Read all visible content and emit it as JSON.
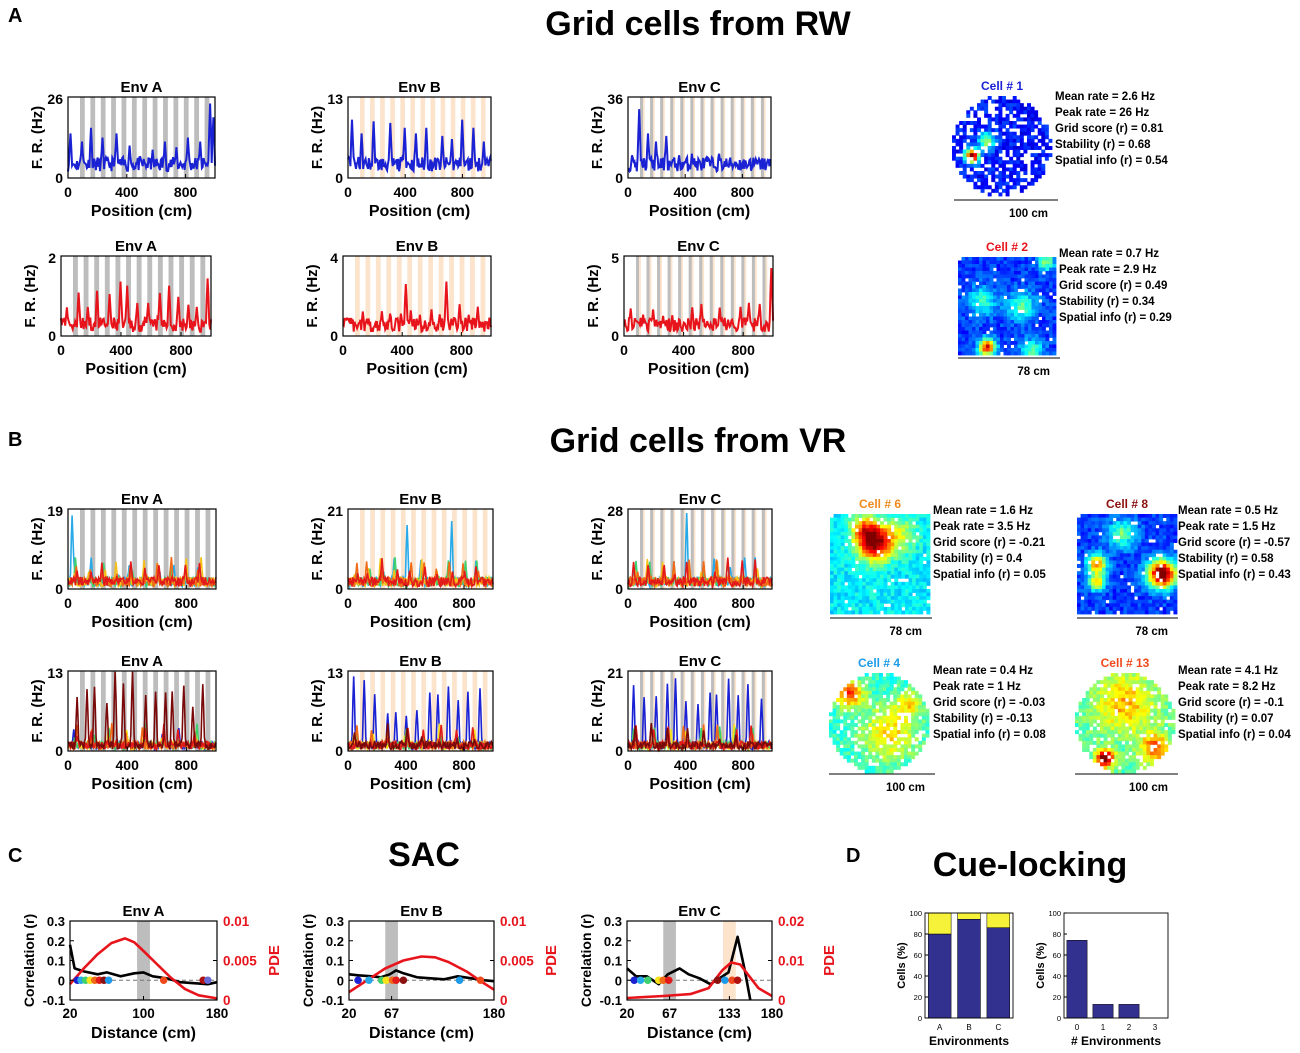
{
  "figure": {
    "panel_letters": {
      "a": "A",
      "b": "B",
      "c": "C",
      "d": "D"
    },
    "titles": {
      "rw": "Grid cells from RW",
      "vr": "Grid cells from VR",
      "sac": "SAC",
      "cue": "Cue-locking"
    },
    "axis_text": {
      "fr_ylabel": "F. R. (Hz)",
      "pos_xlabel": "Position (cm)",
      "corr_ylabel": "Correlation (r)",
      "pde_ylabel": "PDE",
      "dist_xlabel": "Distance (cm)",
      "cells_ylabel": "Cells (%)",
      "env_xlabel": "Environments",
      "nenv_xlabel": "# Environments"
    },
    "colors": {
      "blue": "#1a22d4",
      "red": "#e8141c",
      "gray_band": "#bdbdbd",
      "peach_band": "#fbe3cc",
      "navy_bar": "#33318f",
      "yellow_bar": "#f6f23a"
    }
  },
  "cells": [
    {
      "id": "c1",
      "title": "Cell # 1",
      "color": "#1a22d4",
      "scale": "100 cm",
      "shape": "circle",
      "stats": [
        "Mean rate = 2.6 Hz",
        "Peak rate = 26 Hz",
        "Grid score (r) = 0.81",
        "Stability (r) = 0.68",
        "Spatial info (r) = 0.54"
      ]
    },
    {
      "id": "c2",
      "title": "Cell # 2",
      "color": "#e8141c",
      "scale": "78 cm",
      "shape": "square",
      "stats": [
        "Mean rate = 0.7 Hz",
        "Peak rate = 2.9 Hz",
        "Grid score (r) = 0.49",
        "Stability (r) = 0.34",
        "Spatial info (r) = 0.29"
      ]
    },
    {
      "id": "c6",
      "title": "Cell # 6",
      "color": "#f08a1c",
      "scale": "78 cm",
      "shape": "square",
      "stats": [
        "Mean rate = 1.6 Hz",
        "Peak rate = 3.5 Hz",
        "Grid score (r) = -0.21",
        "Stability (r) = 0.4",
        "Spatial info (r) = 0.05"
      ]
    },
    {
      "id": "c8",
      "title": "Cell # 8",
      "color": "#8b1010",
      "scale": "78 cm",
      "shape": "square",
      "stats": [
        "Mean rate = 0.5 Hz",
        "Peak rate = 1.5 Hz",
        "Grid score (r) = -0.57",
        "Stability (r) = 0.58",
        "Spatial info (r) = 0.43"
      ]
    },
    {
      "id": "c4",
      "title": "Cell # 4",
      "color": "#1e9be8",
      "scale": "100 cm",
      "shape": "circle",
      "stats": [
        "Mean rate = 0.4 Hz",
        "Peak rate = 1 Hz",
        "Grid score (r) = -0.03",
        "Stability (r) = -0.13",
        "Spatial info (r) = 0.08"
      ]
    },
    {
      "id": "c13",
      "title": "Cell # 13",
      "color": "#f04a1c",
      "scale": "100 cm",
      "shape": "circle",
      "stats": [
        "Mean rate = 4.1 Hz",
        "Peak rate = 8.2 Hz",
        "Grid score (r) = -0.1",
        "Stability (r) = 0.07",
        "Spatial info (r) = 0.04"
      ]
    }
  ],
  "chart_data": [
    {
      "type": "line",
      "id": "rw_blue_A",
      "title": "Env A",
      "env": "A",
      "ymax": 26,
      "xticks": [
        0,
        400,
        800
      ],
      "xlim": [
        0,
        1000
      ],
      "color": "blue",
      "xlabel": "Position (cm)",
      "ylabel": "F. R. (Hz)"
    },
    {
      "type": "line",
      "id": "rw_blue_B",
      "title": "Env B",
      "env": "B",
      "ymax": 13,
      "xticks": [
        0,
        400,
        800
      ],
      "xlim": [
        0,
        1000
      ],
      "color": "blue",
      "xlabel": "Position (cm)",
      "ylabel": "F. R. (Hz)"
    },
    {
      "type": "line",
      "id": "rw_blue_C",
      "title": "Env C",
      "env": "C",
      "ymax": 36,
      "xticks": [
        0,
        400,
        800
      ],
      "xlim": [
        0,
        1000
      ],
      "color": "blue",
      "xlabel": "Position (cm)",
      "ylabel": "F. R. (Hz)"
    },
    {
      "type": "line",
      "id": "rw_red_A",
      "title": "Env A",
      "env": "A",
      "ymax": 2,
      "xticks": [
        0,
        400,
        800
      ],
      "xlim": [
        0,
        1000
      ],
      "color": "red",
      "xlabel": "Position (cm)",
      "ylabel": "F. R. (Hz)"
    },
    {
      "type": "line",
      "id": "rw_red_B",
      "title": "Env B",
      "env": "B",
      "ymax": 4,
      "xticks": [
        0,
        400,
        800
      ],
      "xlim": [
        0,
        1000
      ],
      "color": "red",
      "xlabel": "Position (cm)",
      "ylabel": "F. R. (Hz)"
    },
    {
      "type": "line",
      "id": "rw_red_C",
      "title": "Env C",
      "env": "C",
      "ymax": 5,
      "xticks": [
        0,
        400,
        800
      ],
      "xlim": [
        0,
        1000
      ],
      "color": "red",
      "xlabel": "Position (cm)",
      "ylabel": "F. R. (Hz)"
    },
    {
      "type": "line",
      "id": "vr1_A",
      "title": "Env A",
      "env": "A",
      "ymax": 19,
      "xticks": [
        0,
        400,
        800
      ],
      "xlim": [
        0,
        1000
      ],
      "color": "multi1",
      "xlabel": "Position (cm)",
      "ylabel": "F. R. (Hz)"
    },
    {
      "type": "line",
      "id": "vr1_B",
      "title": "Env B",
      "env": "B",
      "ymax": 21,
      "xticks": [
        0,
        400,
        800
      ],
      "xlim": [
        0,
        1000
      ],
      "color": "multi1",
      "xlabel": "Position (cm)",
      "ylabel": "F. R. (Hz)"
    },
    {
      "type": "line",
      "id": "vr1_C",
      "title": "Env C",
      "env": "C",
      "ymax": 28,
      "xticks": [
        0,
        400,
        800
      ],
      "xlim": [
        0,
        1000
      ],
      "color": "multi1",
      "xlabel": "Position (cm)",
      "ylabel": "F. R. (Hz)"
    },
    {
      "type": "line",
      "id": "vr2_A",
      "title": "Env A",
      "env": "A",
      "ymax": 13,
      "xticks": [
        0,
        400,
        800
      ],
      "xlim": [
        0,
        1000
      ],
      "color": "multi2",
      "xlabel": "Position (cm)",
      "ylabel": "F. R. (Hz)"
    },
    {
      "type": "line",
      "id": "vr2_B",
      "title": "Env B",
      "env": "B",
      "ymax": 13,
      "xticks": [
        0,
        400,
        800
      ],
      "xlim": [
        0,
        1000
      ],
      "color": "multi2",
      "xlabel": "Position (cm)",
      "ylabel": "F. R. (Hz)"
    },
    {
      "type": "line",
      "id": "vr2_C",
      "title": "Env C",
      "env": "C",
      "ymax": 21,
      "xticks": [
        0,
        400,
        800
      ],
      "xlim": [
        0,
        1000
      ],
      "color": "multi2",
      "xlabel": "Position (cm)",
      "ylabel": "F. R. (Hz)"
    },
    {
      "type": "line",
      "id": "sac_A",
      "title": "Env A",
      "xlim": [
        20,
        180
      ],
      "xticks": [
        20,
        100,
        180
      ],
      "ylim": [
        -0.1,
        0.3
      ],
      "yticks": [
        0,
        0.1,
        0.2,
        0.3
      ],
      "y2max": 0.01,
      "y2ticks": [
        "0",
        "0.005",
        "0.01"
      ],
      "xlabel": "Distance (cm)",
      "ylabel": "Correlation (r)",
      "y2label": "PDE",
      "band_gray": [
        93,
        107
      ],
      "band_peach": null,
      "black": [
        [
          20,
          0.18
        ],
        [
          25,
          0.06
        ],
        [
          35,
          0.045
        ],
        [
          50,
          0.03
        ],
        [
          60,
          0.04
        ],
        [
          75,
          0.02
        ],
        [
          90,
          0.035
        ],
        [
          100,
          0.04
        ],
        [
          110,
          0.02
        ],
        [
          125,
          0.01
        ],
        [
          140,
          -0.01
        ],
        [
          155,
          -0.015
        ],
        [
          170,
          -0.02
        ],
        [
          180,
          -0.01
        ]
      ],
      "red": [
        [
          20,
          0.002
        ],
        [
          35,
          0.004
        ],
        [
          50,
          0.0058
        ],
        [
          65,
          0.0072
        ],
        [
          80,
          0.0078
        ],
        [
          90,
          0.0073
        ],
        [
          100,
          0.0062
        ],
        [
          115,
          0.0045
        ],
        [
          130,
          0.0028
        ],
        [
          145,
          0.0014
        ],
        [
          160,
          0.0006
        ],
        [
          180,
          0.0002
        ]
      ],
      "dots": [
        28,
        32,
        37,
        42,
        47,
        52,
        57,
        62,
        122,
        165,
        170
      ]
    },
    {
      "type": "line",
      "id": "sac_B",
      "title": "Env B",
      "xlim": [
        20,
        180
      ],
      "xticks": [
        20,
        67,
        180
      ],
      "ylim": [
        -0.1,
        0.3
      ],
      "yticks": [
        0,
        0.1,
        0.2,
        0.3
      ],
      "y2max": 0.01,
      "y2ticks": [
        "0",
        "0.005",
        "0.01"
      ],
      "xlabel": "Distance (cm)",
      "ylabel": "Correlation (r)",
      "y2label": "PDE",
      "band_gray": [
        60,
        74
      ],
      "band_peach": null,
      "black": [
        [
          20,
          0.03
        ],
        [
          30,
          0.025
        ],
        [
          45,
          0.02
        ],
        [
          55,
          0.015
        ],
        [
          65,
          0.03
        ],
        [
          72,
          0.05
        ],
        [
          80,
          0.035
        ],
        [
          95,
          0.015
        ],
        [
          110,
          0.01
        ],
        [
          125,
          0.005
        ],
        [
          140,
          0.02
        ],
        [
          155,
          0.01
        ],
        [
          170,
          0.0
        ],
        [
          180,
          -0.005
        ]
      ],
      "red": [
        [
          20,
          0.001
        ],
        [
          40,
          0.0025
        ],
        [
          60,
          0.004
        ],
        [
          80,
          0.005
        ],
        [
          100,
          0.0055
        ],
        [
          115,
          0.0054
        ],
        [
          130,
          0.0048
        ],
        [
          150,
          0.0036
        ],
        [
          165,
          0.0024
        ],
        [
          180,
          0.0013
        ]
      ],
      "dots": [
        30,
        42,
        56,
        61,
        68,
        72,
        80,
        142,
        165
      ]
    },
    {
      "type": "line",
      "id": "sac_C",
      "title": "Env C",
      "xlim": [
        20,
        180
      ],
      "xticks": [
        20,
        67,
        133,
        180
      ],
      "ylim": [
        -0.1,
        0.3
      ],
      "yticks": [
        0,
        0.1,
        0.2,
        0.3
      ],
      "y2max": 0.02,
      "y2ticks": [
        "0",
        "0.01",
        "0.02"
      ],
      "xlabel": "Distance (cm)",
      "ylabel": "Correlation (r)",
      "y2label": "PDE",
      "band_gray": [
        60,
        74
      ],
      "band_peach": [
        126,
        140
      ],
      "black": [
        [
          20,
          0.06
        ],
        [
          30,
          0.02
        ],
        [
          42,
          0.02
        ],
        [
          55,
          -0.02
        ],
        [
          65,
          0.03
        ],
        [
          78,
          0.06
        ],
        [
          88,
          0.03
        ],
        [
          100,
          0.01
        ],
        [
          112,
          -0.02
        ],
        [
          122,
          0.01
        ],
        [
          132,
          0.04
        ],
        [
          142,
          0.22
        ],
        [
          150,
          0.05
        ],
        [
          156,
          -0.1
        ]
      ],
      "red": [
        [
          20,
          0.0005
        ],
        [
          60,
          0.001
        ],
        [
          90,
          0.0015
        ],
        [
          110,
          0.003
        ],
        [
          125,
          0.0075
        ],
        [
          135,
          0.0095
        ],
        [
          145,
          0.009
        ],
        [
          155,
          0.006
        ],
        [
          165,
          0.003
        ],
        [
          180,
          0.001
        ]
      ],
      "dots": [
        28,
        35,
        43,
        55,
        60,
        66,
        120,
        128,
        136,
        142
      ]
    },
    {
      "type": "bar",
      "id": "cue_env",
      "categories": [
        "A",
        "B",
        "C"
      ],
      "series": [
        {
          "name": "navy",
          "values": [
            80,
            94,
            86
          ]
        },
        {
          "name": "yellow",
          "values": [
            20,
            6,
            14
          ]
        }
      ],
      "ylim": [
        0,
        100
      ],
      "yticks": [
        0,
        20,
        40,
        60,
        80,
        100
      ],
      "xlabel": "Environments",
      "ylabel": "Cells (%)"
    },
    {
      "type": "bar",
      "id": "cue_n",
      "categories": [
        "0",
        "1",
        "2",
        "3"
      ],
      "values": [
        74,
        13,
        13,
        0
      ],
      "ylim": [
        0,
        100
      ],
      "yticks": [
        0,
        20,
        40,
        60,
        80,
        100
      ],
      "xlabel": "# Environments",
      "ylabel": "Cells (%)"
    }
  ]
}
